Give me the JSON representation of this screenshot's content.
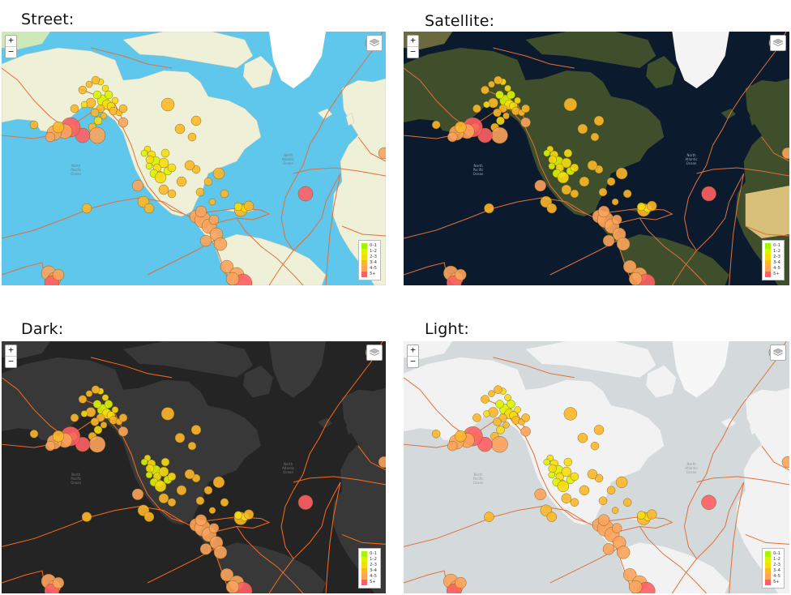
{
  "panels": [
    {
      "id": "street",
      "title": "Street:",
      "theme": {
        "water": "#5fc6ec",
        "land": "#eef0d8",
        "land2": "#cfe8b8",
        "ice": "#ffffff",
        "fault": "#e0703a",
        "label": "#6a7c8a"
      }
    },
    {
      "id": "satellite",
      "title": "Satellite:",
      "theme": {
        "water": "#0c1a2e",
        "land": "#3f4f2b",
        "land2": "#6b6a3e",
        "ice": "#f4f4f4",
        "fault": "#e0703a",
        "label": "#9aa8b8"
      }
    },
    {
      "id": "dark",
      "title": "Dark:",
      "theme": {
        "water": "#242424",
        "land": "#383838",
        "land2": "#3a3a3a",
        "ice": "#3a3a3a",
        "fault": "#ff6a1a",
        "label": "#777777"
      }
    },
    {
      "id": "light",
      "title": "Light:",
      "theme": {
        "water": "#d4dadc",
        "land": "#f2f2f2",
        "land2": "#f2f2f2",
        "ice": "#f7f7f7",
        "fault": "#e0703a",
        "label": "#999999"
      }
    }
  ],
  "controls": {
    "zoom_in": "+",
    "zoom_out": "−"
  },
  "map_labels": {
    "pacific": "North\nPacific\nOcean",
    "atlantic": "North\nAtlantic\nOcean"
  },
  "legend": [
    {
      "label": "0–1",
      "color": "#a3f600"
    },
    {
      "label": "1–2",
      "color": "#dcf400"
    },
    {
      "label": "2–3",
      "color": "#f7db11"
    },
    {
      "label": "3–4",
      "color": "#fdb72a"
    },
    {
      "label": "4–5",
      "color": "#fca35d"
    },
    {
      "label": "5+",
      "color": "#ff5f65"
    }
  ]
}
